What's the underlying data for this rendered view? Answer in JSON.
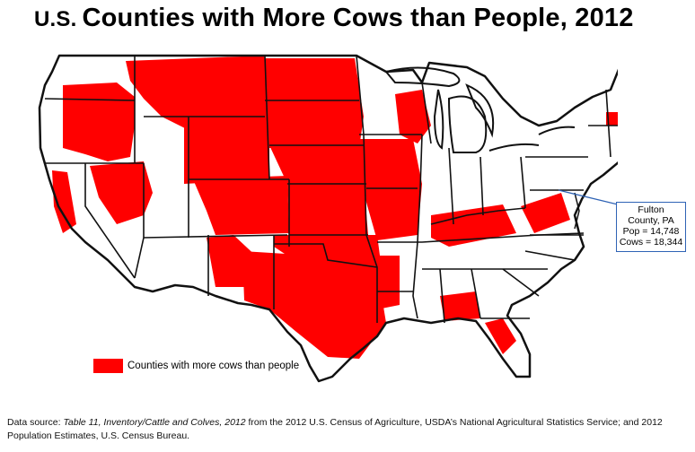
{
  "title": {
    "prefix": "U.S.",
    "main": "Counties with More Cows than People, 2012"
  },
  "colors": {
    "highlight": "#ff0000",
    "callout_border": "#2f63b5",
    "state_lines": "#111111"
  },
  "callout": {
    "line1": "Fulton",
    "line2": "County, PA",
    "line3": "Pop = 14,748",
    "line4": "Cows = 18,344"
  },
  "legend": {
    "label": "Counties with more cows than people"
  },
  "source": {
    "lead": "Data source: ",
    "italic": "Table 11, Inventory/Cattle and Colves, 2012",
    "rest": " from the 2012 U.S. Census of Agriculture, USDA’s National Agricultural Statistics Service; and 2012 Population Estimates, U.S. Census Bureau."
  }
}
